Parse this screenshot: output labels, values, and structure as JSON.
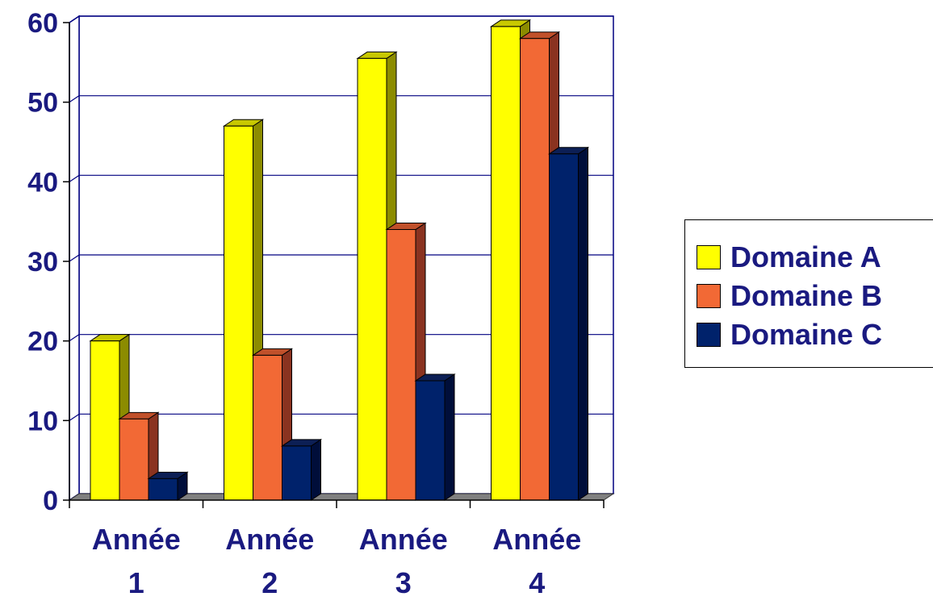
{
  "chart_data": {
    "type": "bar",
    "title": "",
    "xlabel": "",
    "ylabel": "",
    "categories": [
      {
        "line1": "Année",
        "line2": "1"
      },
      {
        "line1": "Année",
        "line2": "2"
      },
      {
        "line1": "Année",
        "line2": "3"
      },
      {
        "line1": "Année",
        "line2": "4"
      }
    ],
    "series": [
      {
        "name": "Domaine A",
        "values": [
          20,
          47,
          55.5,
          59.5
        ],
        "color": "#ffff00",
        "side_color": "#8c8c00",
        "top_color": "#c8c800"
      },
      {
        "name": "Domaine B",
        "values": [
          10.2,
          18.2,
          34,
          58
        ],
        "color": "#f26935",
        "side_color": "#8a3320",
        "top_color": "#c0502a"
      },
      {
        "name": "Domaine C",
        "values": [
          2.7,
          6.8,
          15,
          43.5
        ],
        "color": "#00226b",
        "side_color": "#000e3a",
        "top_color": "#0c1f55"
      }
    ],
    "ylim": [
      0,
      60
    ],
    "yticks": [
      "0",
      "10",
      "20",
      "30",
      "40",
      "50",
      "60"
    ],
    "grid": true,
    "legend_position": "right",
    "three_d": true
  }
}
